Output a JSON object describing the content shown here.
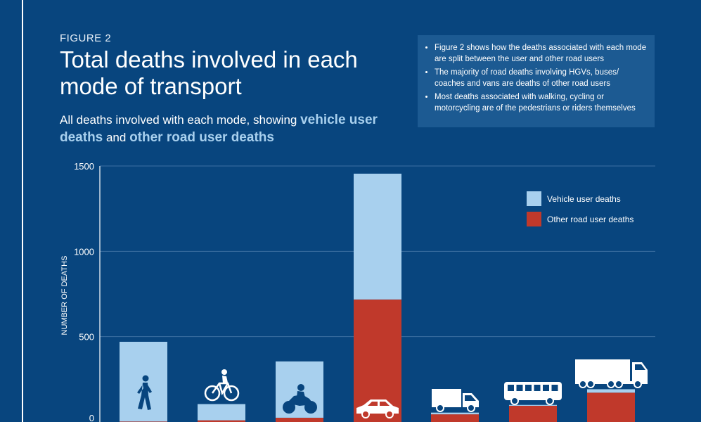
{
  "header": {
    "figure_label": "FIGURE 2",
    "title": "Total deaths involved in each mode of transport",
    "subtitle_pre": "All deaths involved with each mode, showing ",
    "subtitle_em1": "vehicle user deaths",
    "subtitle_mid": " and ",
    "subtitle_em2": "other road user deaths"
  },
  "notes": [
    "Figure 2 shows how the deaths associated with each mode are split between the user and other road users",
    "The majority of road deaths involving HGVs, buses/ coaches and vans are deaths of other road users",
    "Most deaths associated with walking, cycling or motorcycling are of the pedestrians or riders themselves"
  ],
  "colors": {
    "background": "#08457e",
    "vehicle_user": "#a8d0ee",
    "other_road_user": "#c0392b"
  },
  "chart_data": {
    "type": "bar",
    "stacked": true,
    "ylabel": "NUMBER OF DEATHS",
    "ylim": [
      0,
      1500
    ],
    "yticks": [
      0,
      500,
      1000,
      1500
    ],
    "grid": true,
    "legend_position": "top-right",
    "categories": [
      "pedestrian-icon",
      "bicycle-icon",
      "motorcycle-icon",
      "car-icon",
      "van-icon",
      "bus-icon",
      "hgv-truck-icon"
    ],
    "series": [
      {
        "name": "Other road user deaths",
        "color": "#c0392b",
        "values": [
          3,
          10,
          25,
          718,
          45,
          95,
          172
        ]
      },
      {
        "name": "Vehicle user deaths",
        "color": "#a8d0ee",
        "values": [
          467,
          95,
          330,
          737,
          10,
          5,
          20
        ]
      }
    ]
  }
}
